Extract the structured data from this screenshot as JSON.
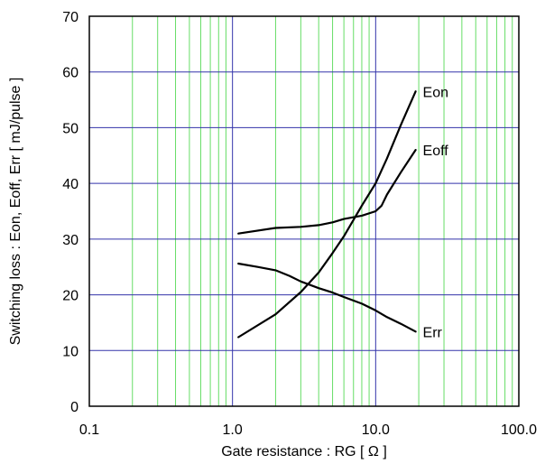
{
  "chart_data": {
    "type": "line",
    "xlabel": "Gate resistance : RG [ Ω ]",
    "ylabel": "Switching loss : Eon, Eoff, Err [ mJ/pulse ]",
    "x_scale": "log",
    "xlim": [
      0.1,
      100
    ],
    "ylim": [
      0,
      70
    ],
    "grid": true,
    "x_ticks": [
      "0.1",
      "1.0",
      "10.0",
      "100.0"
    ],
    "y_ticks": [
      "0",
      "10",
      "20",
      "30",
      "40",
      "50",
      "60",
      "70"
    ],
    "colors": {
      "major_grid": "#3333aa",
      "minor_grid": "#66dd66",
      "series": "#000000"
    },
    "series": [
      {
        "name": "Eon",
        "x": [
          1.1,
          2,
          3,
          4,
          5,
          6,
          8,
          10,
          12,
          15,
          19
        ],
        "y": [
          12.4,
          16.5,
          20.5,
          24,
          27.5,
          30.5,
          36,
          40,
          44.5,
          50.5,
          56.5
        ]
      },
      {
        "name": "Eoff",
        "x": [
          1.1,
          2,
          3,
          4,
          5,
          6,
          8,
          10,
          11,
          12,
          15,
          19
        ],
        "y": [
          31,
          32,
          32.2,
          32.5,
          33,
          33.6,
          34.2,
          35,
          36,
          38,
          42,
          46
        ]
      },
      {
        "name": "Err",
        "x": [
          1.1,
          1.5,
          2,
          2.5,
          3,
          4,
          5,
          6,
          8,
          10,
          12,
          15,
          19
        ],
        "y": [
          25.6,
          25,
          24.4,
          23.4,
          22.4,
          21.2,
          20.4,
          19.6,
          18.4,
          17.2,
          16,
          14.8,
          13.4
        ]
      }
    ]
  }
}
